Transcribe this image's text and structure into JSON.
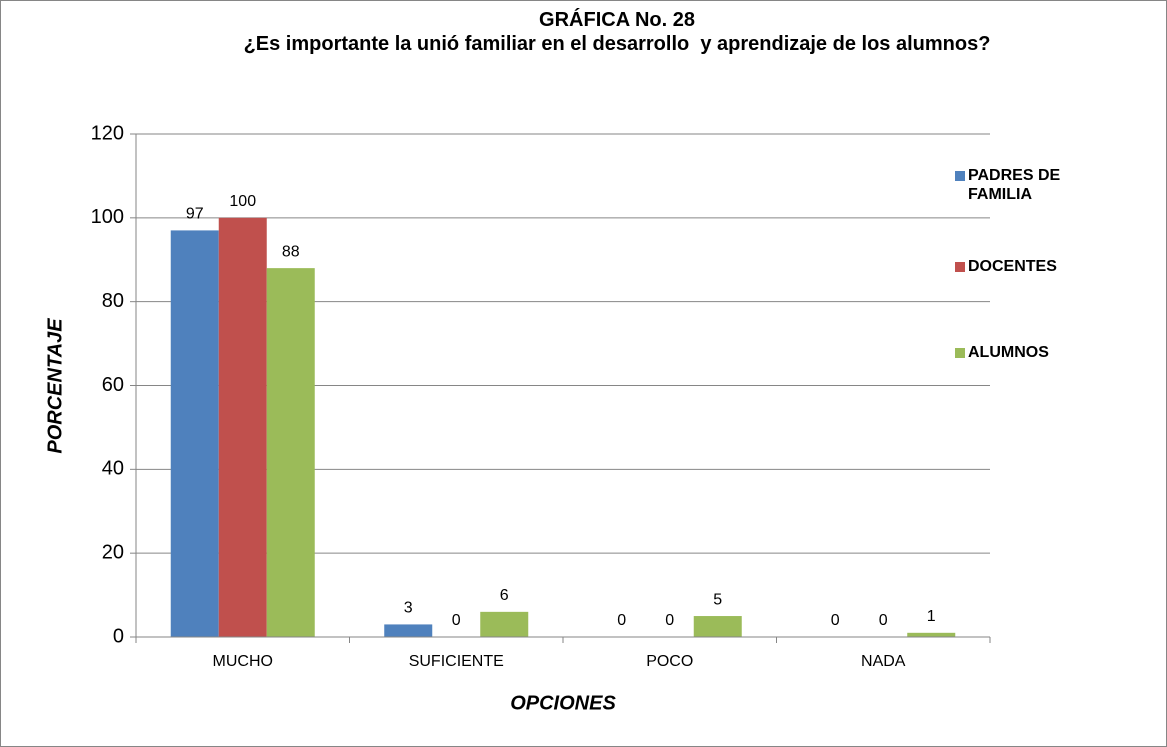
{
  "chart_data": {
    "type": "bar",
    "title": "GRÁFICA No. 28",
    "subtitle": "¿Es importante la unió familiar en el desarrollo  y aprendizaje de los alumnos?",
    "x_label": "OPCIONES",
    "y_label": "PORCENTAJE",
    "categories": [
      "MUCHO",
      "SUFICIENTE",
      "POCO",
      "NADA"
    ],
    "series": [
      {
        "name": "PADRES DE FAMILIA",
        "color": "#4f81bd",
        "values": [
          97,
          3,
          0,
          0
        ]
      },
      {
        "name": "DOCENTES",
        "color": "#c0504d",
        "values": [
          100,
          0,
          0,
          0
        ]
      },
      {
        "name": "ALUMNOS",
        "color": "#9bbb59",
        "values": [
          88,
          6,
          5,
          1
        ]
      }
    ],
    "ylim": [
      0,
      120
    ],
    "yticks": [
      0,
      20,
      40,
      60,
      80,
      100,
      120
    ],
    "grid": true,
    "legend": "right"
  }
}
